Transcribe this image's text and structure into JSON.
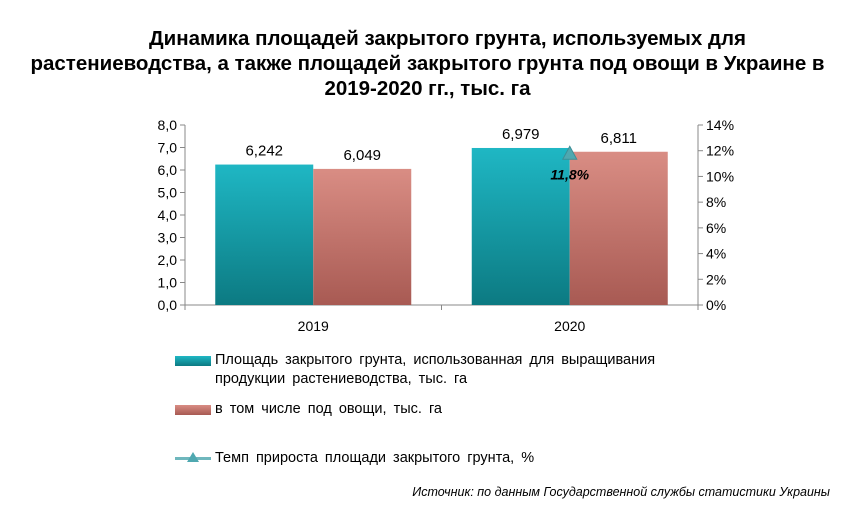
{
  "title": {
    "line1": "Динамика площадей закрытого грунта, используемых для",
    "line2": "растениеводства, а также площадей закрытого грунта под овощи в Украине в",
    "line3": "2019-2020 гг., тыс. га"
  },
  "chart_data": {
    "type": "bar",
    "categories": [
      "2019",
      "2020"
    ],
    "series": [
      {
        "name": "Площадь закрытого грунта, использованная для выращивания продукции растениеводства, тыс. га",
        "values": [
          6.242,
          6.979
        ],
        "labels": [
          "6,242",
          "6,979"
        ],
        "color": "#16a0ab"
      },
      {
        "name": "в том числе под овощи, тыс. га",
        "values": [
          6.049,
          6.811
        ],
        "labels": [
          "6,049",
          "6,811"
        ],
        "color": "#c8776f"
      },
      {
        "name": "Темп прироста площади закрытого грунта, %",
        "type": "line",
        "axis": "secondary",
        "values": [
          null,
          11.8
        ],
        "labels": [
          "",
          "11,8%"
        ],
        "color": "#6fb7bd"
      }
    ],
    "ylim": [
      0,
      8
    ],
    "y_ticks": [
      "0,0",
      "1,0",
      "2,0",
      "3,0",
      "4,0",
      "5,0",
      "6,0",
      "7,0",
      "8,0"
    ],
    "y2lim": [
      0,
      14
    ],
    "y2_ticks": [
      "0%",
      "2%",
      "4%",
      "6%",
      "8%",
      "10%",
      "12%",
      "14%"
    ],
    "grid": false,
    "legend_position": "bottom"
  },
  "legend": {
    "item1_line1": "Площадь закрытого грунта, использованная для выращивания",
    "item1_line2": "продукции растениеводства, тыс. га",
    "item2": "в том числе под овощи, тыс. га",
    "item3": "Темп прироста площади закрытого грунта, %"
  },
  "source": "Источник: по данным Государственной службы статистики Украины"
}
